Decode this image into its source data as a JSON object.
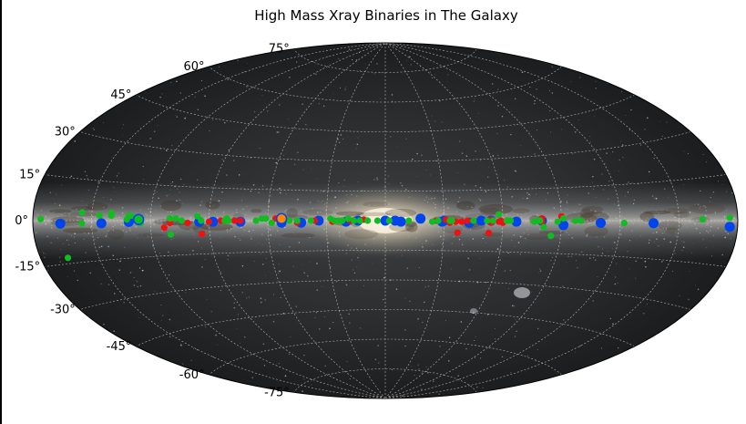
{
  "chart_data": {
    "type": "scatter",
    "title": "High Mass Xray Binaries in The Galaxy",
    "projection": "aitoff",
    "background": "Milky Way all-sky image (Galactic coordinates)",
    "grid": true,
    "lat_ticks": [
      "75°",
      "60°",
      "45°",
      "30°",
      "15°",
      "0°",
      "-15°",
      "-30°",
      "-45°",
      "-60°",
      "-75°"
    ],
    "lat_tick_values": [
      75,
      60,
      45,
      30,
      15,
      0,
      -15,
      -30,
      -45,
      -60,
      -75
    ],
    "lon_range": [
      -180,
      180
    ],
    "lat_range": [
      -90,
      90
    ],
    "series": [
      {
        "color": "#0044ee",
        "marker_size": "large",
        "points": [
          [
            166,
            -1
          ],
          [
            145,
            -1
          ],
          [
            131,
            -0.5
          ],
          [
            95,
            -0.5
          ],
          [
            88,
            -0.5
          ],
          [
            74,
            -0.5
          ],
          [
            53,
            -1
          ],
          [
            43,
            -1
          ],
          [
            34,
            0
          ],
          [
            20,
            -0.5
          ],
          [
            14,
            0
          ],
          [
            0,
            0
          ],
          [
            -8,
            -0.5
          ],
          [
            -5,
            0
          ],
          [
            -18,
            1
          ],
          [
            -29,
            -0.5
          ],
          [
            -30,
            0
          ],
          [
            -43,
            -1
          ],
          [
            -49,
            0
          ],
          [
            -54,
            0
          ],
          [
            -67,
            -0.5
          ],
          [
            -80,
            0
          ],
          [
            -91,
            -2
          ],
          [
            -110,
            -1
          ],
          [
            -137,
            -1
          ],
          [
            -176,
            -2
          ]
        ]
      },
      {
        "color": "#ee1111",
        "marker_size": "medium",
        "points": [
          [
            113,
            -3
          ],
          [
            110,
            -1
          ],
          [
            101,
            -1
          ],
          [
            90,
            -0.5
          ],
          [
            84,
            0
          ],
          [
            77,
            0
          ],
          [
            74,
            0
          ],
          [
            56,
            1
          ],
          [
            53,
            0
          ],
          [
            45,
            -1
          ],
          [
            36,
            0
          ],
          [
            27,
            -0.5
          ],
          [
            22,
            0
          ],
          [
            18,
            0
          ],
          [
            11,
            0.5
          ],
          [
            -26,
            0
          ],
          [
            -31,
            0.5
          ],
          [
            -33,
            -1
          ],
          [
            -36,
            -0.5
          ],
          [
            -39,
            -0.5
          ],
          [
            -54,
            0.5
          ],
          [
            -58,
            -0.5
          ],
          [
            -59,
            0
          ],
          [
            -62,
            0
          ],
          [
            -37,
            -6
          ],
          [
            -60,
            -1
          ],
          [
            -54,
            -1
          ],
          [
            -42,
            0
          ],
          [
            -53,
            -6
          ],
          [
            -80,
            1
          ],
          [
            -80,
            -0.5
          ],
          [
            -90,
            2
          ],
          [
            94,
            -6
          ]
        ]
      },
      {
        "color": "#11bb22",
        "marker_size": "medium",
        "points": [
          [
            176,
            0.5
          ],
          [
            155,
            -1
          ],
          [
            146,
            2
          ],
          [
            140,
            2
          ],
          [
            132,
            0.5
          ],
          [
            131,
            2
          ],
          [
            130,
            2
          ],
          [
            127,
            1
          ],
          [
            126,
            0
          ],
          [
            125,
            -1
          ],
          [
            110,
            1
          ],
          [
            107,
            1
          ],
          [
            104,
            0
          ],
          [
            96,
            2
          ],
          [
            94,
            0
          ],
          [
            82,
            0
          ],
          [
            81,
            1
          ],
          [
            80,
            0
          ],
          [
            66,
            0
          ],
          [
            63,
            1
          ],
          [
            61,
            1
          ],
          [
            58,
            -1
          ],
          [
            49,
            0
          ],
          [
            45,
            0
          ],
          [
            38,
            0
          ],
          [
            28,
            1
          ],
          [
            26,
            0
          ],
          [
            24,
            0
          ],
          [
            22,
            0
          ],
          [
            19,
            1
          ],
          [
            16,
            0
          ],
          [
            13,
            0
          ],
          [
            9,
            0
          ],
          [
            4,
            0
          ],
          [
            -2,
            0
          ],
          [
            -12,
            0
          ],
          [
            -24,
            -0.5
          ],
          [
            -27,
            0
          ],
          [
            -33,
            0
          ],
          [
            -34,
            0
          ],
          [
            -45,
            0
          ],
          [
            -52,
            0
          ],
          [
            -55,
            0
          ],
          [
            -58,
            3
          ],
          [
            -62,
            0
          ],
          [
            -63,
            0
          ],
          [
            -64,
            0
          ],
          [
            -76,
            -0.5
          ],
          [
            -78,
            0
          ],
          [
            -79,
            0
          ],
          [
            -81,
            -3
          ],
          [
            -88,
            -0.5
          ],
          [
            -91,
            1
          ],
          [
            -97,
            0
          ],
          [
            -100,
            0
          ],
          [
            -122,
            -1
          ],
          [
            -162,
            0.5
          ],
          [
            -176,
            1
          ],
          [
            -85,
            -7
          ],
          [
            110,
            -6
          ],
          [
            166,
            -13
          ],
          [
            155,
            3
          ],
          [
            140,
            3
          ]
        ]
      }
    ],
    "highlight_points": [
      {
        "lon": 53,
        "lat": 1,
        "color": "#ff8800",
        "ring": "#0044ee"
      },
      {
        "lon": 126,
        "lat": 0.5,
        "color": "#11bb22",
        "ring": "#0044ee"
      }
    ]
  }
}
